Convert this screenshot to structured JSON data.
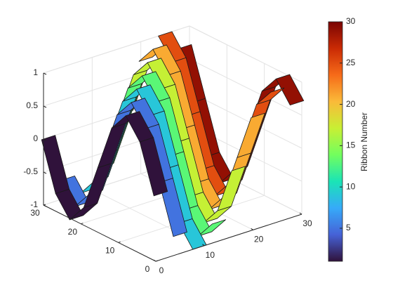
{
  "chart_data": {
    "type": "ribbon",
    "ribbons": [
      1,
      5,
      9,
      13,
      17,
      21,
      25,
      29
    ],
    "y": [
      0,
      3.75,
      7.5,
      11.25,
      15,
      18.75,
      22.5,
      26.25,
      30
    ],
    "z": [
      [
        0,
        0.71,
        1,
        0.71,
        0,
        -0.71,
        -1,
        -0.71,
        0
      ],
      [
        -0.71,
        0,
        0.71,
        1,
        0.71,
        0,
        -0.71,
        -1,
        -0.71
      ],
      [
        -1,
        -0.71,
        0,
        0.71,
        1,
        0.71,
        0,
        -0.71,
        -1
      ],
      [
        -0.71,
        -1,
        -0.71,
        0,
        0.71,
        1,
        0.71,
        0,
        -0.71
      ],
      [
        0,
        -0.71,
        -1,
        -0.71,
        0,
        0.71,
        1,
        0.71,
        0
      ],
      [
        0.71,
        0,
        -0.71,
        -1,
        -0.71,
        0,
        0.71,
        1,
        0.71
      ],
      [
        1,
        0.71,
        0,
        -0.71,
        -1,
        -0.71,
        0,
        0.71,
        1
      ],
      [
        0.71,
        1,
        0.71,
        0,
        -0.71,
        -1,
        -0.71,
        0,
        0.71
      ]
    ],
    "xlim": [
      0,
      30
    ],
    "xticks": [
      0,
      10,
      20,
      30
    ],
    "ylim": [
      0,
      30
    ],
    "yticks": [
      0,
      10,
      20,
      30
    ],
    "zlim": [
      -1,
      1
    ],
    "zticks": [
      -1,
      -0.5,
      0,
      0.5,
      1
    ],
    "grid": true,
    "colormap": [
      "#30123b",
      "#4662d7",
      "#36aaf9",
      "#1ae4b6",
      "#72fe5e",
      "#c8ef34",
      "#faba39",
      "#f66b19",
      "#ca2a04",
      "#7a0403"
    ],
    "colorbar": {
      "label": "Ribbon Number",
      "lim": [
        1,
        30
      ],
      "ticks": [
        5,
        10,
        15,
        20,
        25,
        30
      ]
    }
  }
}
